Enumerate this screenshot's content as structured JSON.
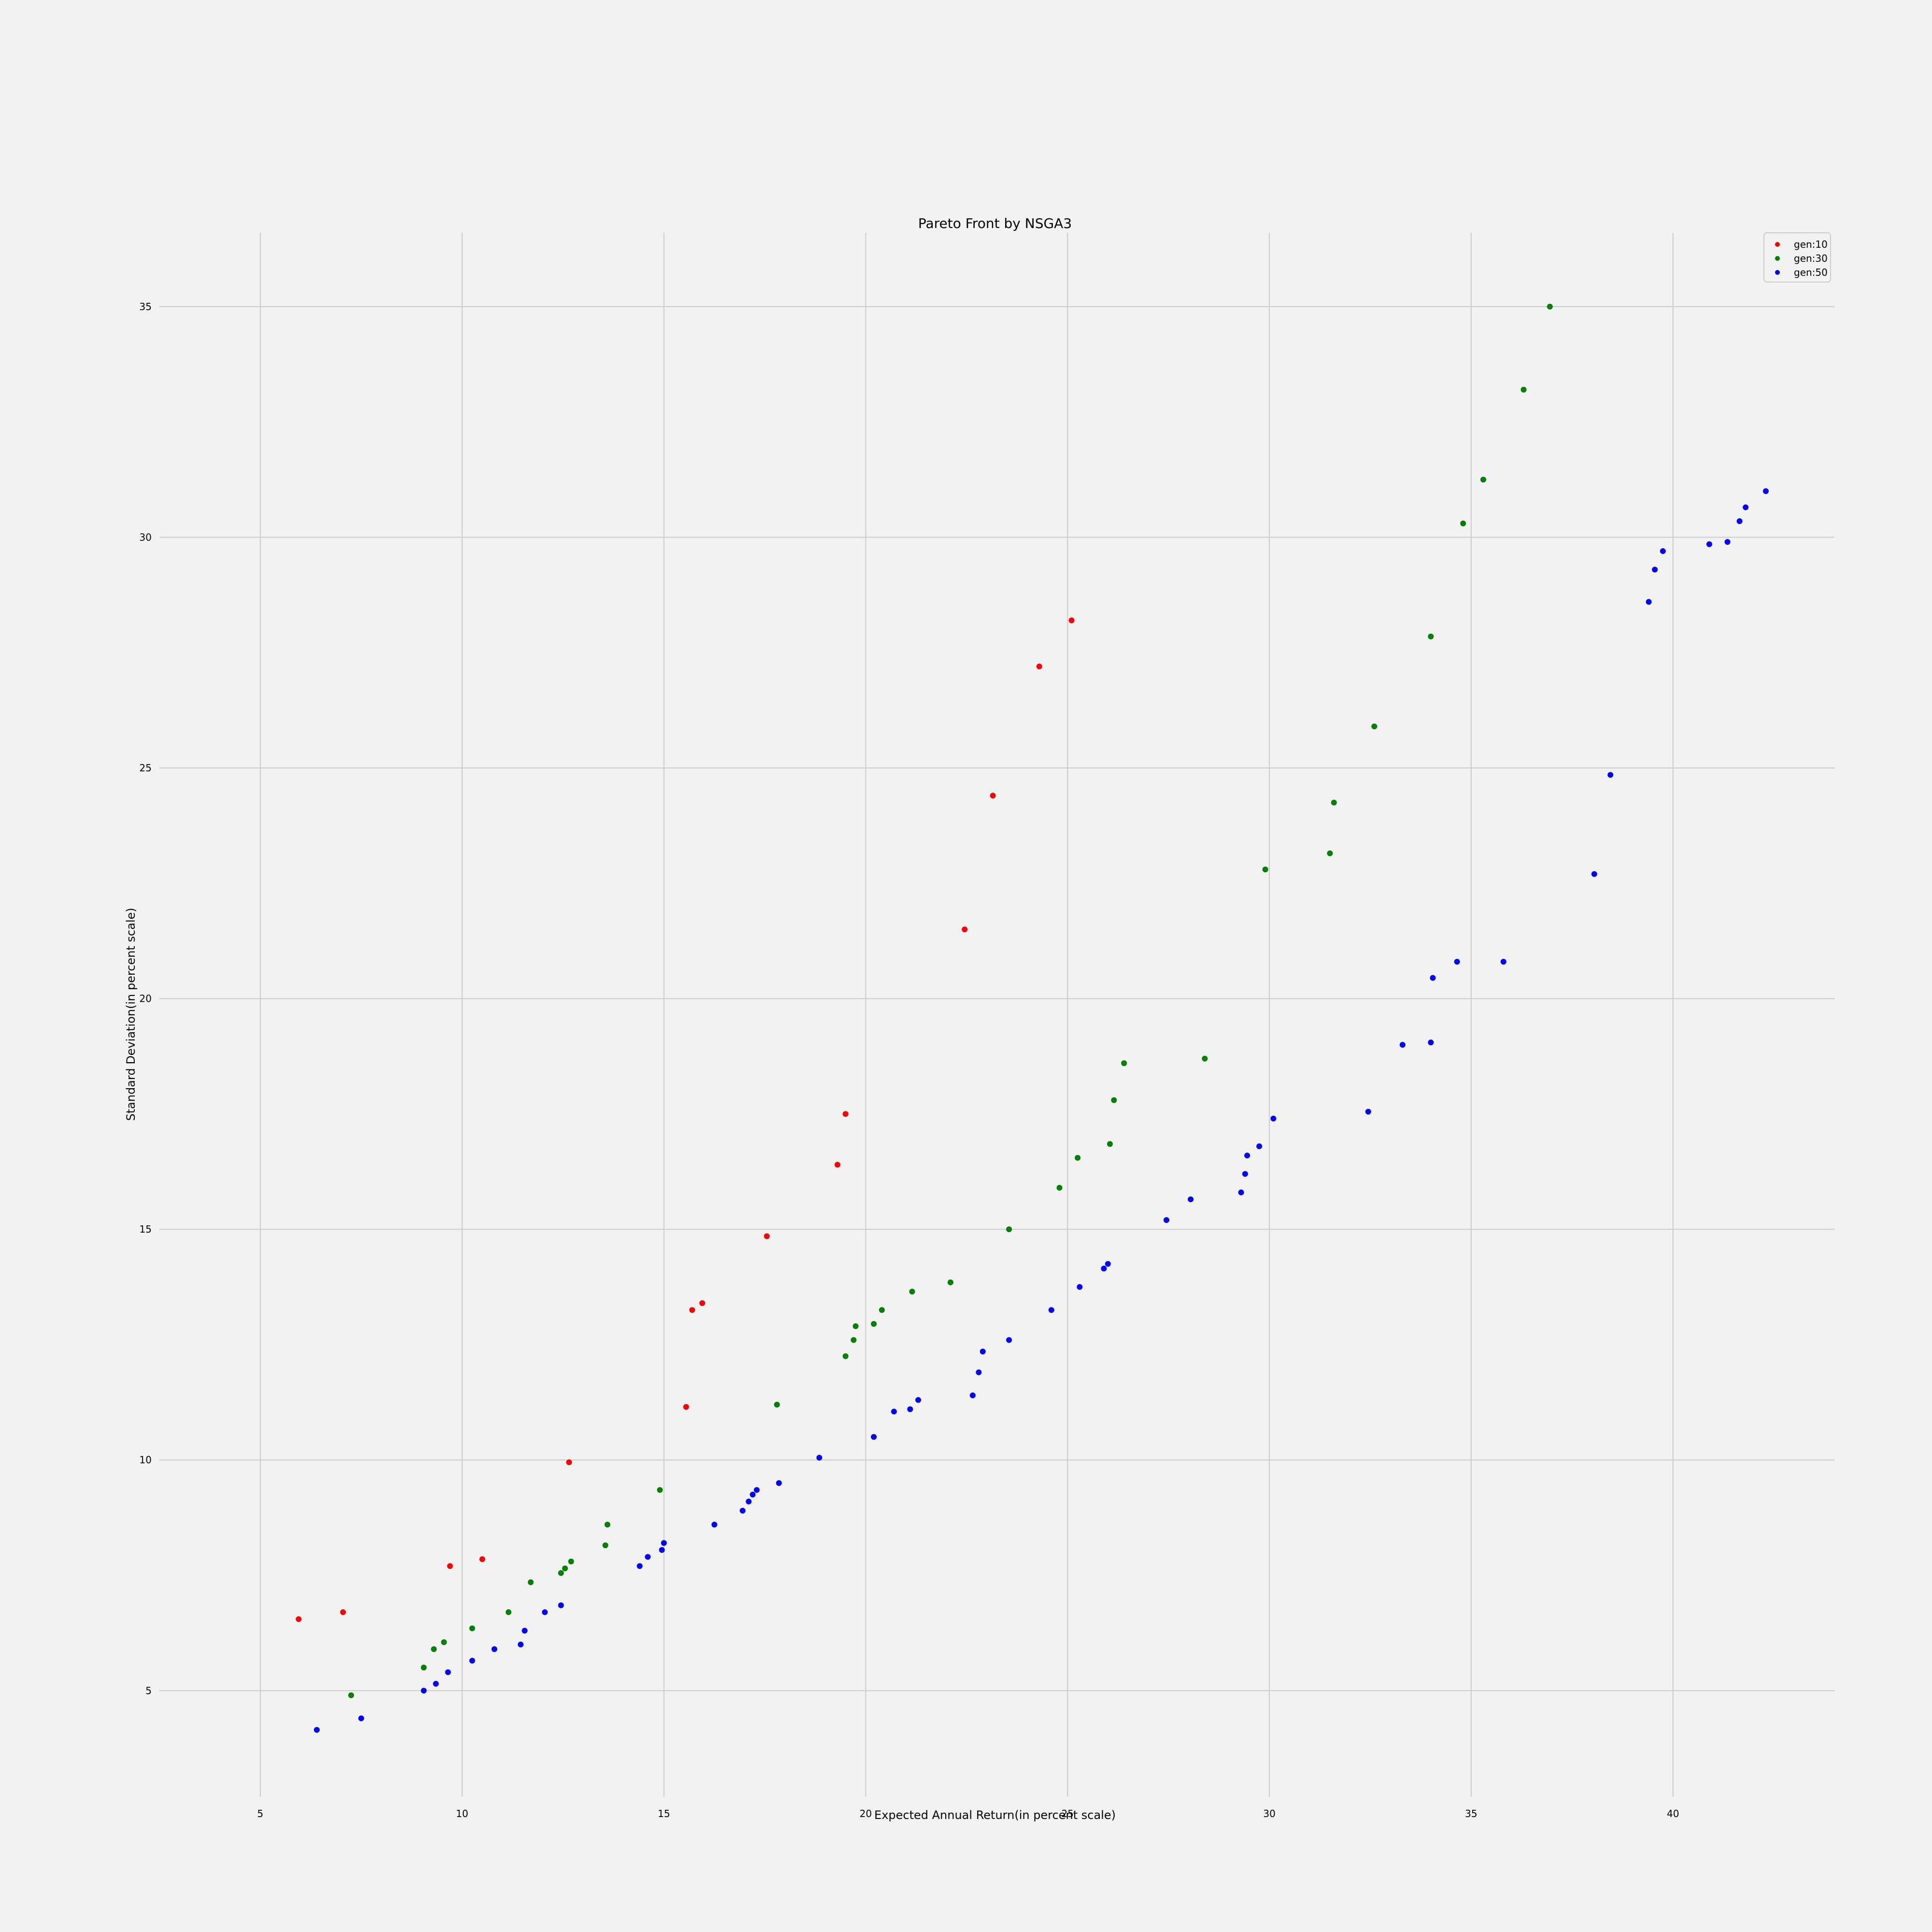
{
  "chart_data": {
    "type": "scatter",
    "title": "Pareto Front by NSGA3",
    "xlabel": "Expected Annual Return(in percent scale)",
    "ylabel": "Standard Deviation(in percent scale)",
    "xlim": [
      2.5,
      44
    ],
    "ylim": [
      2.7,
      36.6
    ],
    "xticks": [
      5,
      10,
      15,
      20,
      25,
      30,
      35,
      40
    ],
    "yticks": [
      5,
      10,
      15,
      20,
      25,
      30,
      35
    ],
    "grid": true,
    "legend_position": "top-right",
    "series": [
      {
        "name": "gen:10",
        "color": "#ff0000",
        "points": [
          [
            5.95,
            6.55
          ],
          [
            7.05,
            6.7
          ],
          [
            9.7,
            7.7
          ],
          [
            10.5,
            7.85
          ],
          [
            12.65,
            9.95
          ],
          [
            15.55,
            11.15
          ],
          [
            15.7,
            13.25
          ],
          [
            15.95,
            13.4
          ],
          [
            17.55,
            14.85
          ],
          [
            19.3,
            16.4
          ],
          [
            19.5,
            17.5
          ],
          [
            22.45,
            21.5
          ],
          [
            23.15,
            24.4
          ],
          [
            24.3,
            27.2
          ],
          [
            25.1,
            28.2
          ]
        ]
      },
      {
        "name": "gen:30",
        "color": "#008000",
        "points": [
          [
            7.25,
            4.9
          ],
          [
            9.05,
            5.5
          ],
          [
            9.3,
            5.9
          ],
          [
            9.55,
            6.05
          ],
          [
            10.25,
            6.35
          ],
          [
            11.15,
            6.7
          ],
          [
            11.7,
            7.35
          ],
          [
            12.45,
            7.55
          ],
          [
            12.55,
            7.65
          ],
          [
            12.7,
            7.8
          ],
          [
            13.55,
            8.15
          ],
          [
            13.6,
            8.6
          ],
          [
            14.9,
            9.35
          ],
          [
            17.8,
            11.2
          ],
          [
            19.5,
            12.25
          ],
          [
            19.7,
            12.6
          ],
          [
            19.75,
            12.9
          ],
          [
            20.2,
            12.95
          ],
          [
            20.4,
            13.25
          ],
          [
            21.15,
            13.65
          ],
          [
            22.1,
            13.85
          ],
          [
            23.55,
            15.0
          ],
          [
            24.8,
            15.9
          ],
          [
            25.25,
            16.55
          ],
          [
            26.05,
            16.85
          ],
          [
            26.15,
            17.8
          ],
          [
            26.4,
            18.6
          ],
          [
            28.4,
            18.7
          ],
          [
            29.9,
            22.8
          ],
          [
            31.5,
            23.15
          ],
          [
            31.6,
            24.25
          ],
          [
            32.6,
            25.9
          ],
          [
            34.0,
            27.85
          ],
          [
            34.8,
            30.3
          ],
          [
            35.3,
            31.25
          ],
          [
            36.3,
            33.2
          ],
          [
            36.95,
            35.0
          ]
        ]
      },
      {
        "name": "gen:50",
        "color": "#0000ff",
        "points": [
          [
            6.4,
            4.15
          ],
          [
            7.5,
            4.4
          ],
          [
            9.05,
            5.0
          ],
          [
            9.35,
            5.15
          ],
          [
            9.65,
            5.4
          ],
          [
            10.25,
            5.65
          ],
          [
            10.8,
            5.9
          ],
          [
            11.45,
            6.0
          ],
          [
            11.55,
            6.3
          ],
          [
            12.05,
            6.7
          ],
          [
            12.45,
            6.85
          ],
          [
            14.4,
            7.7
          ],
          [
            14.6,
            7.9
          ],
          [
            14.95,
            8.05
          ],
          [
            15.0,
            8.2
          ],
          [
            16.25,
            8.6
          ],
          [
            16.95,
            8.9
          ],
          [
            17.1,
            9.1
          ],
          [
            17.2,
            9.25
          ],
          [
            17.3,
            9.35
          ],
          [
            17.85,
            9.5
          ],
          [
            18.85,
            10.05
          ],
          [
            20.2,
            10.5
          ],
          [
            20.7,
            11.05
          ],
          [
            21.1,
            11.1
          ],
          [
            21.3,
            11.3
          ],
          [
            22.65,
            11.4
          ],
          [
            22.8,
            11.9
          ],
          [
            22.9,
            12.35
          ],
          [
            23.55,
            12.6
          ],
          [
            24.6,
            13.25
          ],
          [
            25.3,
            13.75
          ],
          [
            25.9,
            14.15
          ],
          [
            26.0,
            14.25
          ],
          [
            27.45,
            15.2
          ],
          [
            28.05,
            15.65
          ],
          [
            29.3,
            15.8
          ],
          [
            29.4,
            16.2
          ],
          [
            29.45,
            16.6
          ],
          [
            29.75,
            16.8
          ],
          [
            30.1,
            17.4
          ],
          [
            32.45,
            17.55
          ],
          [
            33.3,
            19.0
          ],
          [
            34.0,
            19.05
          ],
          [
            34.05,
            20.45
          ],
          [
            34.65,
            20.8
          ],
          [
            35.8,
            20.8
          ],
          [
            38.05,
            22.7
          ],
          [
            38.45,
            24.85
          ],
          [
            39.4,
            28.6
          ],
          [
            39.55,
            29.3
          ],
          [
            39.75,
            29.7
          ],
          [
            40.9,
            29.85
          ],
          [
            41.35,
            29.9
          ],
          [
            41.65,
            30.35
          ],
          [
            41.8,
            30.65
          ],
          [
            42.3,
            31.0
          ]
        ]
      }
    ]
  }
}
